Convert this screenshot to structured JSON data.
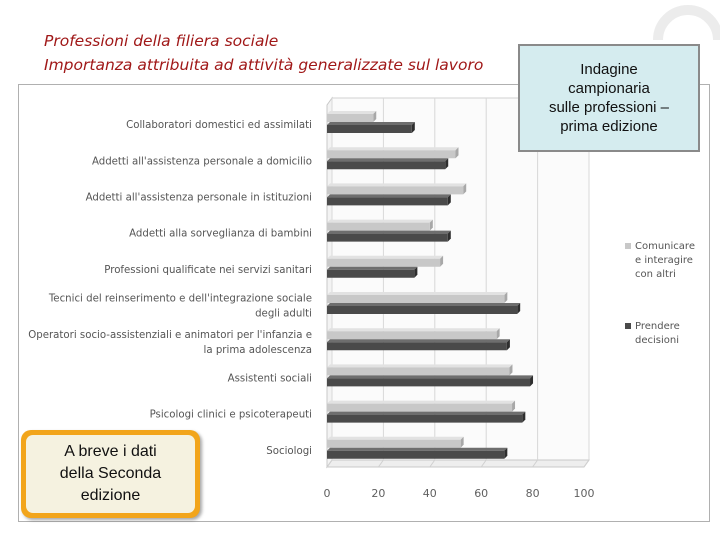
{
  "header": {
    "title_line1": "Professioni della filiera sociale",
    "title_line2": "Importanza attribuita ad attività generalizzate sul lavoro"
  },
  "callout": {
    "text": "Indagine\ncampionaria\nsulle professioni –\nprima edizione"
  },
  "coming_soon": {
    "text": "A breve i dati\ndella Seconda\nedizione"
  },
  "chart_data": {
    "type": "bar",
    "orientation": "horizontal",
    "categories": [
      "Collaboratori domestici ed assimilati",
      "Addetti all'assistenza personale a domicilio",
      "Addetti all'assistenza personale in istituzioni",
      "Addetti alla sorveglianza di bambini",
      "Professioni qualificate nei servizi sanitari",
      "Tecnici del reinserimento e dell'integrazione sociale degli adulti",
      "Operatori socio-assistenziali e animatori per l'infanzia e la prima adolescenza",
      "Assistenti sociali",
      "Psicologi clinici e psicoterapeuti",
      "Sociologi"
    ],
    "category_lines": [
      [
        "Collaboratori domestici ed assimilati"
      ],
      [
        "Addetti all'assistenza personale a domicilio"
      ],
      [
        "Addetti all'assistenza personale in istituzioni"
      ],
      [
        "Addetti alla sorveglianza di bambini"
      ],
      [
        "Professioni qualificate nei servizi sanitari"
      ],
      [
        "Tecnici del reinserimento e dell'integrazione sociale",
        "degli adulti"
      ],
      [
        "Operatori socio-assistenziali e animatori per l'infanzia e",
        "la prima adolescenza"
      ],
      [
        "Assistenti sociali"
      ],
      [
        "Psicologi clinici e psicoterapeuti"
      ],
      [
        "Sociologi"
      ]
    ],
    "series": [
      {
        "name": "Comunicare e interagire con altri",
        "legend_lines": [
          "Comunicare",
          "e interagire",
          "con altri"
        ],
        "color": "#c8c8c8",
        "values": [
          18,
          50,
          53,
          40,
          44,
          69,
          66,
          71,
          72,
          52
        ]
      },
      {
        "name": "Prendere decisioni",
        "legend_lines": [
          "Prendere",
          "decisioni"
        ],
        "color": "#4a4a4a",
        "values": [
          33,
          46,
          47,
          47,
          34,
          74,
          70,
          79,
          76,
          69
        ]
      }
    ],
    "xlim": [
      0,
      100
    ],
    "xticks": [
      0,
      20,
      40,
      60,
      80,
      100
    ],
    "grid": true,
    "legend_position": "right",
    "style": "3d"
  }
}
